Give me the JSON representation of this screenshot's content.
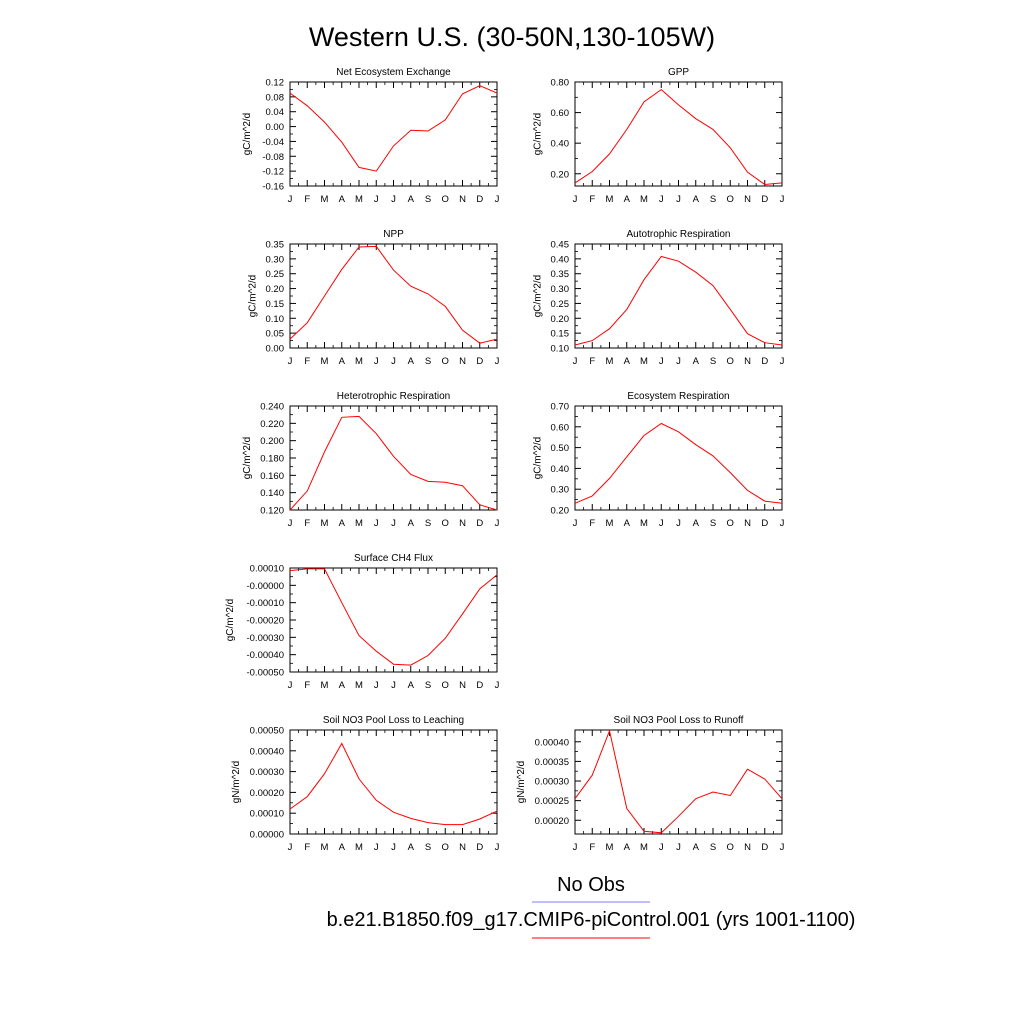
{
  "title": "Western U.S. (30-50N,130-105W)",
  "month_labels": [
    "J",
    "F",
    "M",
    "A",
    "M",
    "J",
    "J",
    "A",
    "S",
    "O",
    "N",
    "D",
    "J"
  ],
  "legend": {
    "entries": [
      {
        "label": "No Obs",
        "color": "#7f7fff"
      },
      {
        "label": "b.e21.B1850.f09_g17.CMIP6-piControl.001 (yrs 1001-1100)",
        "color": "#ff0000"
      }
    ]
  },
  "chart_data": [
    {
      "type": "line",
      "title": "Net Ecosystem Exchange",
      "ylabel": "gC/m^2/d",
      "ylim": [
        -0.16,
        0.12
      ],
      "yticks": [
        "0.12",
        "0.08",
        "0.04",
        "0.00",
        "-0.04",
        "-0.08",
        "-0.12",
        "-0.16"
      ],
      "ytick_values": [
        0.12,
        0.08,
        0.04,
        0.0,
        -0.04,
        -0.08,
        -0.12,
        -0.16
      ],
      "series": [
        {
          "color": "#ff0000",
          "values": [
            0.09,
            0.056,
            0.012,
            -0.042,
            -0.11,
            -0.12,
            -0.052,
            -0.01,
            -0.012,
            0.018,
            0.088,
            0.11,
            0.09
          ]
        }
      ]
    },
    {
      "type": "line",
      "title": "GPP",
      "ylabel": "gC/m^2/d",
      "ylim": [
        0.12,
        0.8
      ],
      "yticks": [
        "0.80",
        "0.60",
        "0.40",
        "0.20"
      ],
      "ytick_values": [
        0.8,
        0.6,
        0.4,
        0.2
      ],
      "series": [
        {
          "color": "#ff0000",
          "values": [
            0.14,
            0.215,
            0.33,
            0.49,
            0.67,
            0.75,
            0.65,
            0.56,
            0.49,
            0.37,
            0.21,
            0.13,
            0.14
          ]
        }
      ]
    },
    {
      "type": "line",
      "title": "NPP",
      "ylabel": "gC/m^2/d",
      "ylim": [
        0.0,
        0.35
      ],
      "yticks": [
        "0.35",
        "0.30",
        "0.25",
        "0.20",
        "0.15",
        "0.10",
        "0.05",
        "0.00"
      ],
      "ytick_values": [
        0.35,
        0.3,
        0.25,
        0.2,
        0.15,
        0.1,
        0.05,
        0.0
      ],
      "series": [
        {
          "color": "#ff0000",
          "values": [
            0.03,
            0.085,
            0.175,
            0.265,
            0.34,
            0.342,
            0.262,
            0.208,
            0.182,
            0.14,
            0.06,
            0.016,
            0.03
          ]
        }
      ]
    },
    {
      "type": "line",
      "title": "Autotrophic Respiration",
      "ylabel": "gC/m^2/d",
      "ylim": [
        0.1,
        0.45
      ],
      "yticks": [
        "0.45",
        "0.40",
        "0.35",
        "0.30",
        "0.25",
        "0.20",
        "0.15",
        "0.10"
      ],
      "ytick_values": [
        0.45,
        0.4,
        0.35,
        0.3,
        0.25,
        0.2,
        0.15,
        0.1
      ],
      "series": [
        {
          "color": "#ff0000",
          "values": [
            0.11,
            0.125,
            0.165,
            0.23,
            0.33,
            0.408,
            0.392,
            0.355,
            0.31,
            0.23,
            0.148,
            0.118,
            0.11
          ]
        }
      ]
    },
    {
      "type": "line",
      "title": "Heterotrophic Respiration",
      "ylabel": "gC/m^2/d",
      "ylim": [
        0.12,
        0.24
      ],
      "yticks": [
        "0.240",
        "0.220",
        "0.200",
        "0.180",
        "0.160",
        "0.140",
        "0.120"
      ],
      "ytick_values": [
        0.24,
        0.22,
        0.2,
        0.18,
        0.16,
        0.14,
        0.12
      ],
      "series": [
        {
          "color": "#ff0000",
          "values": [
            0.12,
            0.142,
            0.187,
            0.227,
            0.228,
            0.208,
            0.182,
            0.161,
            0.153,
            0.152,
            0.148,
            0.126,
            0.12
          ]
        }
      ]
    },
    {
      "type": "line",
      "title": "Ecosystem Respiration",
      "ylabel": "gC/m^2/d",
      "ylim": [
        0.2,
        0.7
      ],
      "yticks": [
        "0.70",
        "0.60",
        "0.50",
        "0.40",
        "0.30",
        "0.20"
      ],
      "ytick_values": [
        0.7,
        0.6,
        0.5,
        0.4,
        0.3,
        0.2
      ],
      "series": [
        {
          "color": "#ff0000",
          "values": [
            0.232,
            0.268,
            0.352,
            0.456,
            0.558,
            0.616,
            0.576,
            0.514,
            0.46,
            0.38,
            0.294,
            0.243,
            0.232
          ]
        }
      ]
    },
    {
      "type": "line",
      "title": "Surface CH4 Flux",
      "ylabel": "gC/m^2/d",
      "ylim": [
        -0.0005,
        0.0001
      ],
      "yticks": [
        "0.00010",
        "-0.00000",
        "-0.00010",
        "-0.00020",
        "-0.00030",
        "-0.00040",
        "-0.00050"
      ],
      "ytick_values": [
        0.0001,
        0.0,
        -0.0001,
        -0.0002,
        -0.0003,
        -0.0004,
        -0.0005
      ],
      "series": [
        {
          "color": "#ff0000",
          "values": [
            8.5e-05,
            9.5e-05,
            9.5e-05,
            -0.0001,
            -0.00029,
            -0.00038,
            -0.000455,
            -0.00046,
            -0.000405,
            -0.000305,
            -0.000165,
            -2e-05,
            6e-05
          ]
        }
      ]
    },
    {
      "type": "line",
      "title": "Soil NO3 Pool Loss to Leaching",
      "ylabel": "gN/m^2/d",
      "ylim": [
        0.0,
        0.0005
      ],
      "yticks": [
        "0.00050",
        "0.00040",
        "0.00030",
        "0.00020",
        "0.00010",
        "0.00000"
      ],
      "ytick_values": [
        0.0005,
        0.0004,
        0.0003,
        0.0002,
        0.0001,
        0.0
      ],
      "series": [
        {
          "color": "#ff0000",
          "values": [
            0.00012,
            0.00018,
            0.00029,
            0.000435,
            0.000265,
            0.000162,
            0.000105,
            7.5e-05,
            5.5e-05,
            4.5e-05,
            4.5e-05,
            7.2e-05,
            0.00011
          ]
        }
      ]
    },
    {
      "type": "line",
      "title": "Soil NO3 Pool Loss to Runoff",
      "ylabel": "gN/m^2/d",
      "ylim": [
        0.000165,
        0.00043
      ],
      "yticks": [
        "0.00040",
        "0.00035",
        "0.00030",
        "0.00025",
        "0.00020"
      ],
      "ytick_values": [
        0.0004,
        0.00035,
        0.0003,
        0.00025,
        0.0002
      ],
      "series": [
        {
          "color": "#ff0000",
          "values": [
            0.000255,
            0.000315,
            0.000428,
            0.00023,
            0.000172,
            0.000168,
            0.00021,
            0.000255,
            0.000272,
            0.000263,
            0.00033,
            0.000305,
            0.000255
          ]
        }
      ]
    }
  ]
}
